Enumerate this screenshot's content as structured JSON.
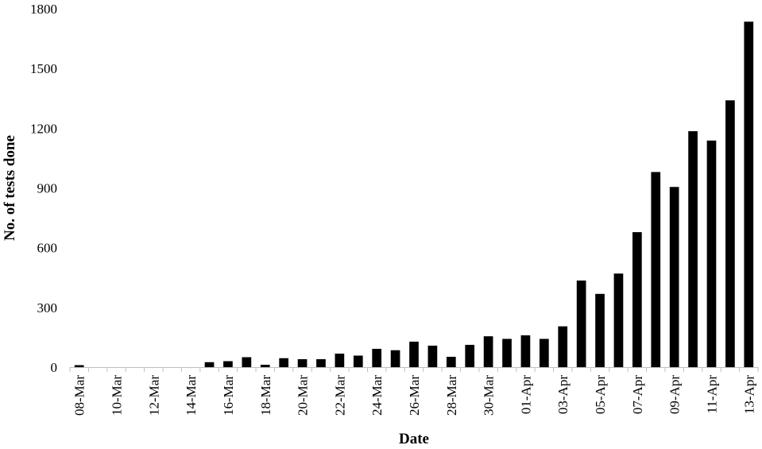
{
  "chart_data": {
    "type": "bar",
    "title": "",
    "xlabel": "Date",
    "ylabel": "No. of tests done",
    "ylim": [
      0,
      1800
    ],
    "yticks": [
      0,
      300,
      600,
      900,
      1200,
      1500,
      1800
    ],
    "grid": false,
    "legend": "none",
    "bar_color": "#000000",
    "categories": [
      "08-Mar",
      "09-Mar",
      "10-Mar",
      "11-Mar",
      "12-Mar",
      "13-Mar",
      "14-Mar",
      "15-Mar",
      "16-Mar",
      "17-Mar",
      "18-Mar",
      "19-Mar",
      "20-Mar",
      "21-Mar",
      "22-Mar",
      "23-Mar",
      "24-Mar",
      "25-Mar",
      "26-Mar",
      "27-Mar",
      "28-Mar",
      "29-Mar",
      "30-Mar",
      "31-Mar",
      "01-Apr",
      "02-Apr",
      "03-Apr",
      "04-Apr",
      "05-Apr",
      "06-Apr",
      "07-Apr",
      "08-Apr",
      "09-Apr",
      "10-Apr",
      "11-Apr",
      "12-Apr",
      "13-Apr"
    ],
    "xtick_labels": [
      "08-Mar",
      "10-Mar",
      "12-Mar",
      "14-Mar",
      "16-Mar",
      "18-Mar",
      "20-Mar",
      "22-Mar",
      "24-Mar",
      "26-Mar",
      "28-Mar",
      "30-Mar",
      "01-Apr",
      "03-Apr",
      "05-Apr",
      "07-Apr",
      "09-Apr",
      "11-Apr",
      "13-Apr"
    ],
    "values": [
      10,
      0,
      0,
      0,
      0,
      0,
      0,
      25,
      30,
      50,
      12,
      45,
      40,
      40,
      68,
      58,
      92,
      85,
      128,
      108,
      52,
      112,
      155,
      142,
      160,
      142,
      205,
      435,
      368,
      470,
      678,
      980,
      905,
      1185,
      1138,
      1340,
      1735
    ]
  }
}
